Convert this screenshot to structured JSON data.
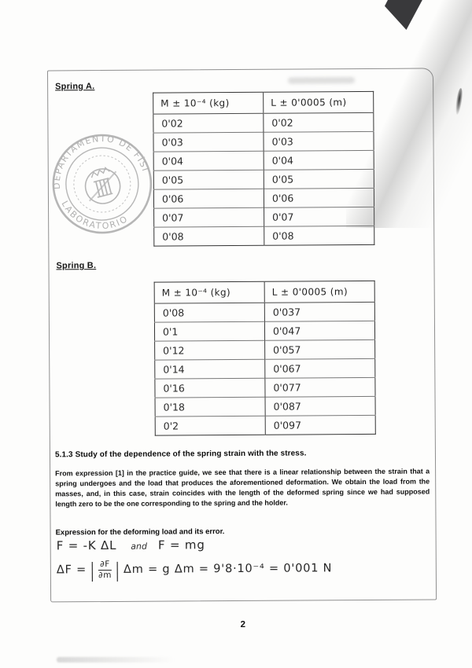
{
  "page": {
    "number": "2"
  },
  "spring_a": {
    "label": "Spring A.",
    "table": {
      "headers": [
        "M ± 10⁻⁴ (kg)",
        "L ± 0'0005 (m)"
      ],
      "rows": [
        [
          "0'02",
          "0'02"
        ],
        [
          "0'03",
          "0'03"
        ],
        [
          "0'04",
          "0'04"
        ],
        [
          "0'05",
          "0'05"
        ],
        [
          "0'06",
          "0'06"
        ],
        [
          "0'07",
          "0'07"
        ],
        [
          "0'08",
          "0'08"
        ]
      ]
    }
  },
  "spring_b": {
    "label": "Spring B.",
    "table": {
      "headers": [
        "M ± 10⁻⁴ (kg)",
        "L ± 0'0005 (m)"
      ],
      "rows": [
        [
          "0'08",
          "0'037"
        ],
        [
          "0'1",
          "0'047"
        ],
        [
          "0'12",
          "0'057"
        ],
        [
          "0'14",
          "0'067"
        ],
        [
          "0'16",
          "0'077"
        ],
        [
          "0'18",
          "0'087"
        ],
        [
          "0'2",
          "0'097"
        ]
      ]
    }
  },
  "stamp": {
    "arc_top": "DEPARTAMENTO DE FÍSICA",
    "arc_bottom": "LABORATORIO"
  },
  "section": {
    "heading": "5.1.3 Study of the dependence of the spring strain with the stress.",
    "paragraph": "From expression [1] in the practice guide, we see that there is a linear relationship between the strain that a spring undergoes and the load that produces the aforementioned deformation. We obtain the load from the masses, and, in this case, strain coincides with the length of the deformed spring since we had supposed length zero to be the one corresponding to the spring and the holder.",
    "subheading": "Expression for the deforming load and its error."
  },
  "formulas": {
    "line1_left": "F = -K ΔL",
    "line1_and": "and",
    "line1_right": "F = mg",
    "line2_lhs": "ΔF =",
    "line2_frac_top": "∂F",
    "line2_frac_bottom": "∂m",
    "line2_rest": "Δm = g Δm = 9'8·10⁻⁴ = 0'001 N"
  },
  "colors": {
    "ink": "#272727",
    "print": "#0c0c0c",
    "stamp": "#a3a3a3",
    "corner_artifact": "#39393b"
  }
}
